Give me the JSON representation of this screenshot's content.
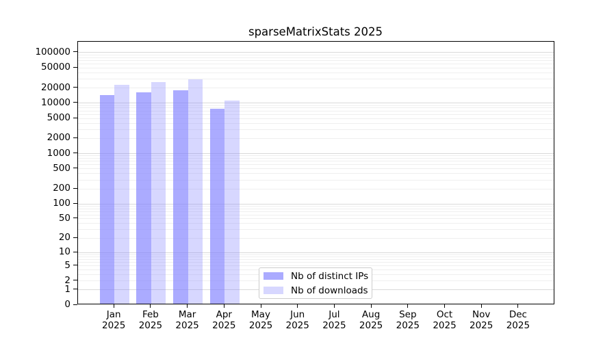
{
  "chart_data": {
    "type": "bar",
    "title": "sparseMatrixStats 2025",
    "categories": [
      "Jan",
      "Feb",
      "Mar",
      "Apr",
      "May",
      "Jun",
      "Jul",
      "Aug",
      "Sep",
      "Oct",
      "Nov",
      "Dec"
    ],
    "year_label": "2025",
    "series": [
      {
        "name": "Nb of distinct IPs",
        "color": "#7f7fff",
        "alpha": 0.66,
        "values": [
          13600,
          15200,
          16700,
          7300,
          0,
          0,
          0,
          0,
          0,
          0,
          0,
          0
        ]
      },
      {
        "name": "Nb of downloads",
        "color": "#7f7fff",
        "alpha": 0.31,
        "values": [
          21700,
          24300,
          28100,
          10700,
          0,
          0,
          0,
          0,
          0,
          0,
          0,
          0
        ]
      }
    ],
    "yticks": [
      0,
      1,
      2,
      5,
      10,
      20,
      50,
      100,
      200,
      500,
      1000,
      2000,
      5000,
      10000,
      20000,
      50000,
      100000
    ],
    "ylim": [
      0,
      158000
    ],
    "yscale": "log10(1+v)",
    "grid": {
      "major_color": "#d9d9d9",
      "minor_color": "#efefef"
    },
    "axis_color": "#000000",
    "background_color": "#ffffff",
    "legend_position": "lower center"
  }
}
